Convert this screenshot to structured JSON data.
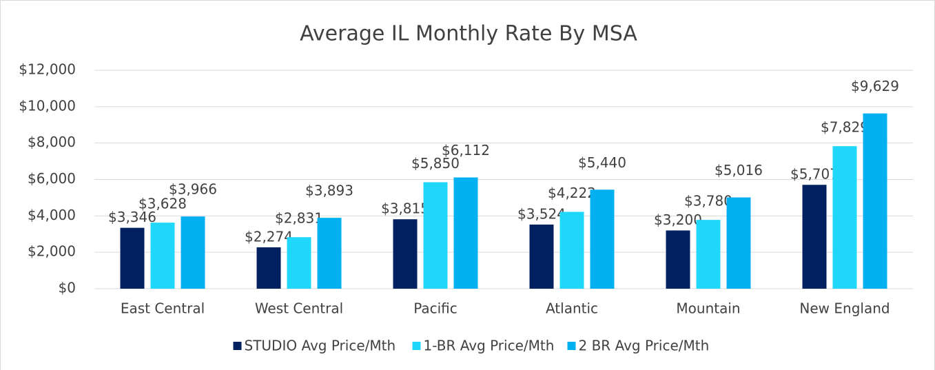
{
  "chart_data": {
    "type": "bar",
    "title": "Average IL Monthly Rate By MSA",
    "categories": [
      "East Central",
      "West Central",
      "Pacific",
      "Atlantic",
      "Mountain",
      "New England"
    ],
    "series": [
      {
        "name": "STUDIO Avg Price/Mth",
        "color": "#002060",
        "values": [
          3346,
          2274,
          3815,
          3524,
          3200,
          5707
        ],
        "value_labels": [
          "$3,346",
          "$2,274",
          "$3,815",
          "$3,524",
          "$3,200",
          "$5,707"
        ]
      },
      {
        "name": "1-BR Avg Price/Mth",
        "color": "#1fd6fb",
        "values": [
          3628,
          2831,
          5850,
          4222,
          3780,
          7829
        ],
        "value_labels": [
          "$3,628",
          "$2,831",
          "$5,850",
          "$4,222",
          "$3,780",
          "$7,829"
        ]
      },
      {
        "name": "2 BR Avg Price/Mth",
        "color": "#00b0f0",
        "values": [
          3966,
          3893,
          6112,
          5440,
          5016,
          9629
        ],
        "value_labels": [
          "$3,966",
          "$3,893",
          "$6,112",
          "$5,440",
          "$5,016",
          "$9,629"
        ]
      }
    ],
    "ylim": [
      0,
      12000
    ],
    "yticks": [
      {
        "value": 0,
        "label": "$0"
      },
      {
        "value": 2000,
        "label": "$2,000"
      },
      {
        "value": 4000,
        "label": "$4,000"
      },
      {
        "value": 6000,
        "label": "$6,000"
      },
      {
        "value": 8000,
        "label": "$8,000"
      },
      {
        "value": 10000,
        "label": "$10,000"
      },
      {
        "value": 12000,
        "label": "$12,000"
      }
    ],
    "grid": true,
    "legend": "bottom"
  }
}
